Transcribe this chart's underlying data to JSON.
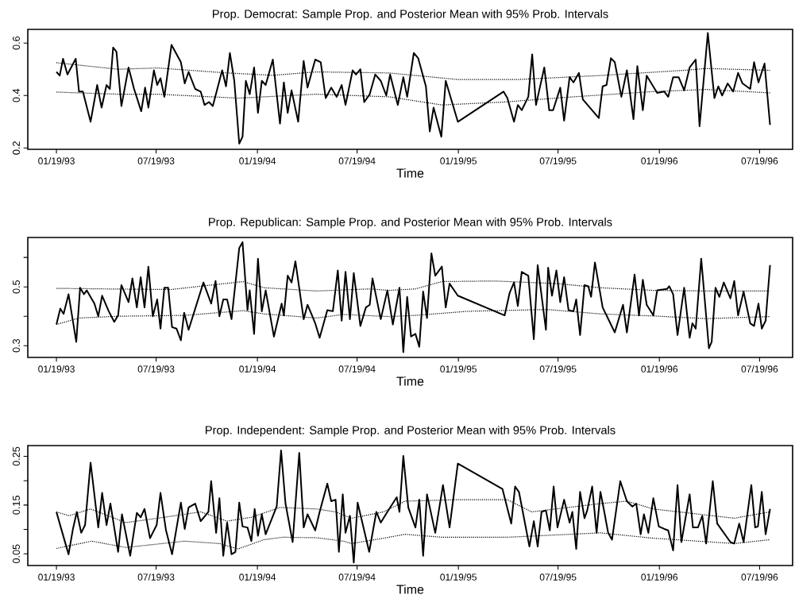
{
  "chart_data": [
    {
      "type": "line",
      "title": "Prop. Democrat: Sample Prop. and Posterior Mean with 95% Prob. Intervals",
      "xlabel": "Time",
      "grid": false,
      "line_style": "solid",
      "xlim": [
        "1992-11-28",
        "1996-09-17"
      ],
      "ylim": [
        0.195,
        0.652
      ],
      "xticks": [
        {
          "value": "1993-01-19",
          "label": "01/19/93"
        },
        {
          "value": "1993-07-19",
          "label": "07/19/93"
        },
        {
          "value": "1994-01-19",
          "label": "01/19/94"
        },
        {
          "value": "1994-07-19",
          "label": "07/19/94"
        },
        {
          "value": "1995-01-19",
          "label": "01/19/95"
        },
        {
          "value": "1995-07-19",
          "label": "07/19/95"
        },
        {
          "value": "1996-01-19",
          "label": "01/19/96"
        },
        {
          "value": "1996-07-19",
          "label": "07/19/96"
        }
      ],
      "yticks": [
        0.2,
        0.4,
        0.6
      ],
      "series": [
        {
          "color": "#000000",
          "x": [
            "1993-01-19",
            "1993-01-25",
            "1993-01-31",
            "1993-02-08",
            "1993-02-23",
            "1993-03-01",
            "1993-03-08",
            "1993-03-22",
            "1993-04-03",
            "1993-04-11",
            "1993-04-20",
            "1993-04-26",
            "1993-05-02",
            "1993-05-08",
            "1993-05-17",
            "1993-05-30",
            "1993-06-09",
            "1993-06-22",
            "1993-06-29",
            "1993-07-05",
            "1993-07-15",
            "1993-07-21",
            "1993-07-27",
            "1993-08-03",
            "1993-08-16",
            "1993-09-02",
            "1993-09-09",
            "1993-09-16",
            "1993-09-28",
            "1993-10-08",
            "1993-10-15",
            "1993-10-23",
            "1993-10-30",
            "1993-11-16",
            "1993-11-23",
            "1993-11-30",
            "1993-12-08",
            "1993-12-17",
            "1993-12-23",
            "1993-12-29",
            "1994-01-05",
            "1994-01-13",
            "1994-01-20",
            "1994-01-27",
            "1994-02-03",
            "1994-02-16",
            "1994-03-01",
            "1994-03-08",
            "1994-03-15",
            "1994-03-22",
            "1994-04-03",
            "1994-04-13",
            "1994-04-20",
            "1994-05-04",
            "1994-05-14",
            "1994-05-23",
            "1994-06-02",
            "1994-06-12",
            "1994-06-21",
            "1994-06-28",
            "1994-07-11",
            "1994-07-17",
            "1994-07-25",
            "1994-08-01",
            "1994-08-11",
            "1994-08-21",
            "1994-08-31",
            "1994-09-10",
            "1994-09-17",
            "1994-10-01",
            "1994-10-11",
            "1994-10-18",
            "1994-10-30",
            "1994-11-07",
            "1994-11-21",
            "1994-11-28",
            "1994-12-05",
            "1994-12-19",
            "1994-12-27",
            "1995-01-18",
            "1995-04-11",
            "1995-04-18",
            "1995-04-30",
            "1995-05-07",
            "1995-05-14",
            "1995-05-26",
            "1995-06-02",
            "1995-06-09",
            "1995-06-24",
            "1995-07-03",
            "1995-07-10",
            "1995-07-23",
            "1995-07-30",
            "1995-08-09",
            "1995-08-16",
            "1995-08-26",
            "1995-09-02",
            "1995-10-01",
            "1995-10-08",
            "1995-10-15",
            "1995-10-23",
            "1995-10-30",
            "1995-11-11",
            "1995-11-21",
            "1995-12-03",
            "1995-12-10",
            "1995-12-20",
            "1995-12-27",
            "1996-01-15",
            "1996-01-28",
            "1996-02-04",
            "1996-02-13",
            "1996-02-23",
            "1996-03-04",
            "1996-03-14",
            "1996-03-25",
            "1996-04-01",
            "1996-04-16",
            "1996-04-28",
            "1996-05-05",
            "1996-05-12",
            "1996-05-22",
            "1996-06-01",
            "1996-06-10",
            "1996-06-18",
            "1996-07-02",
            "1996-07-09",
            "1996-07-17",
            "1996-07-28",
            "1996-08-07"
          ],
          "values": [
            0.49,
            0.476,
            0.54,
            0.48,
            0.54,
            0.415,
            0.415,
            0.3,
            0.44,
            0.354,
            0.44,
            0.425,
            0.583,
            0.567,
            0.36,
            0.507,
            0.425,
            0.34,
            0.43,
            0.354,
            0.496,
            0.44,
            0.466,
            0.395,
            0.593,
            0.527,
            0.446,
            0.49,
            0.425,
            0.415,
            0.364,
            0.375,
            0.36,
            0.496,
            0.435,
            0.562,
            0.456,
            0.217,
            0.243,
            0.456,
            0.405,
            0.507,
            0.334,
            0.456,
            0.44,
            0.537,
            0.293,
            0.45,
            0.334,
            0.42,
            0.3,
            0.532,
            0.43,
            0.537,
            0.527,
            0.39,
            0.43,
            0.395,
            0.44,
            0.364,
            0.496,
            0.48,
            0.5,
            0.375,
            0.405,
            0.48,
            0.456,
            0.4,
            0.48,
            0.364,
            0.47,
            0.395,
            0.562,
            0.542,
            0.435,
            0.263,
            0.354,
            0.243,
            0.456,
            0.3,
            0.415,
            0.39,
            0.3,
            0.364,
            0.344,
            0.395,
            0.557,
            0.364,
            0.507,
            0.344,
            0.344,
            0.43,
            0.304,
            0.47,
            0.45,
            0.486,
            0.385,
            0.314,
            0.435,
            0.44,
            0.542,
            0.527,
            0.395,
            0.496,
            0.31,
            0.512,
            0.344,
            0.476,
            0.41,
            0.415,
            0.395,
            0.47,
            0.47,
            0.42,
            0.507,
            0.537,
            0.283,
            0.638,
            0.39,
            0.435,
            0.4,
            0.446,
            0.415,
            0.486,
            0.446,
            0.425,
            0.527,
            0.45,
            0.522,
            0.288
          ]
        },
        {
          "color": "#000000",
          "line_style": "dotted",
          "x": [
            "1993-01-19",
            "1993-05-11",
            "1993-07-22",
            "1993-11-25",
            "1994-02-16",
            "1994-05-06",
            "1994-09-15",
            "1995-01-18",
            "1995-05-07",
            "1995-10-01",
            "1996-03-04",
            "1996-04-13",
            "1996-08-07"
          ],
          "values": [
            0.525,
            0.5,
            0.505,
            0.486,
            0.477,
            0.49,
            0.486,
            0.461,
            0.461,
            0.476,
            0.496,
            0.503,
            0.496
          ]
        },
        {
          "color": "#000000",
          "line_style": "dotted",
          "x": [
            "1993-01-19",
            "1993-05-11",
            "1993-07-22",
            "1993-12-15",
            "1994-05-06",
            "1994-09-15",
            "1994-12-20",
            "1995-04-11",
            "1995-08-16",
            "1996-01-08",
            "1996-04-13",
            "1996-08-07"
          ],
          "values": [
            0.413,
            0.405,
            0.405,
            0.39,
            0.405,
            0.395,
            0.364,
            0.375,
            0.395,
            0.415,
            0.423,
            0.41
          ]
        }
      ]
    },
    {
      "type": "line",
      "title": "Prop. Republican: Sample Prop. and Posterior Mean with 95% Prob. Intervals",
      "xlabel": "Time",
      "grid": false,
      "line_style": "solid",
      "xlim": [
        "1992-11-28",
        "1996-09-17"
      ],
      "ylim": [
        0.26,
        0.668
      ],
      "xticks": [
        {
          "value": "1993-01-19",
          "label": "01/19/93"
        },
        {
          "value": "1993-07-19",
          "label": "07/19/93"
        },
        {
          "value": "1994-01-19",
          "label": "01/19/94"
        },
        {
          "value": "1994-07-19",
          "label": "07/19/94"
        },
        {
          "value": "1995-01-19",
          "label": "01/19/95"
        },
        {
          "value": "1995-07-19",
          "label": "07/19/95"
        },
        {
          "value": "1996-01-19",
          "label": "01/19/96"
        },
        {
          "value": "1996-07-19",
          "label": "07/19/96"
        }
      ],
      "yticks": [
        0.3,
        {
          "value": 0.4,
          "label": null
        },
        0.5,
        {
          "value": 0.6,
          "label": null
        }
      ],
      "series": [
        {
          "color": "#000000",
          "x": [
            "1993-01-19",
            "1993-01-26",
            "1993-02-01",
            "1993-02-10",
            "1993-02-24",
            "1993-03-03",
            "1993-03-10",
            "1993-03-15",
            "1993-03-29",
            "1993-04-05",
            "1993-04-12",
            "1993-04-24",
            "1993-05-04",
            "1993-05-11",
            "1993-05-17",
            "1993-05-30",
            "1993-06-06",
            "1993-06-14",
            "1993-06-21",
            "1993-06-28",
            "1993-07-05",
            "1993-07-13",
            "1993-07-21",
            "1993-07-27",
            "1993-08-03",
            "1993-08-10",
            "1993-08-17",
            "1993-08-25",
            "1993-09-02",
            "1993-09-08",
            "1993-09-16",
            "1993-10-13",
            "1993-10-27",
            "1993-11-04",
            "1993-11-11",
            "1993-11-18",
            "1993-11-25",
            "1993-12-03",
            "1993-12-17",
            "1993-12-23",
            "1994-01-01",
            "1994-01-05",
            "1994-01-13",
            "1994-01-20",
            "1994-01-27",
            "1994-02-03",
            "1994-02-18",
            "1994-03-04",
            "1994-03-08",
            "1994-03-15",
            "1994-03-22",
            "1994-03-29",
            "1994-04-13",
            "1994-04-20",
            "1994-04-27",
            "1994-05-04",
            "1994-05-12",
            "1994-05-26",
            "1994-06-05",
            "1994-06-14",
            "1994-06-21",
            "1994-06-28",
            "1994-07-06",
            "1994-07-13",
            "1994-07-25",
            "1994-08-04",
            "1994-08-11",
            "1994-08-16",
            "1994-08-31",
            "1994-09-12",
            "1994-09-22",
            "1994-10-04",
            "1994-10-11",
            "1994-10-18",
            "1994-10-25",
            "1994-11-02",
            "1994-11-09",
            "1994-11-16",
            "1994-11-23",
            "1994-12-01",
            "1994-12-08",
            "1994-12-20",
            "1994-12-27",
            "1995-01-03",
            "1995-01-18",
            "1995-04-13",
            "1995-04-22",
            "1995-04-30",
            "1995-05-07",
            "1995-05-14",
            "1995-05-26",
            "1995-06-05",
            "1995-06-12",
            "1995-06-27",
            "1995-07-01",
            "1995-07-08",
            "1995-07-16",
            "1995-07-23",
            "1995-07-30",
            "1995-08-07",
            "1995-08-16",
            "1995-08-21",
            "1995-08-28",
            "1995-09-05",
            "1995-09-12",
            "1995-09-17",
            "1995-09-24",
            "1995-10-08",
            "1995-10-30",
            "1995-11-14",
            "1995-11-21",
            "1995-12-05",
            "1995-12-13",
            "1995-12-20",
            "1995-12-27",
            "1996-01-08",
            "1996-01-15",
            "1996-02-02",
            "1996-02-06",
            "1996-02-13",
            "1996-02-21",
            "1996-03-04",
            "1996-03-14",
            "1996-03-19",
            "1996-03-25",
            "1996-04-04",
            "1996-04-18",
            "1996-04-23",
            "1996-04-30",
            "1996-05-07",
            "1996-05-15",
            "1996-05-27",
            "1996-06-03",
            "1996-06-10",
            "1996-06-20",
            "1996-07-02",
            "1996-07-09",
            "1996-07-17",
            "1996-07-23",
            "1996-07-30",
            "1996-08-07"
          ],
          "values": [
            0.372,
            0.426,
            0.408,
            0.475,
            0.313,
            0.497,
            0.475,
            0.488,
            0.443,
            0.4,
            0.47,
            0.417,
            0.381,
            0.403,
            0.506,
            0.448,
            0.529,
            0.43,
            0.533,
            0.43,
            0.569,
            0.4,
            0.457,
            0.358,
            0.497,
            0.497,
            0.363,
            0.358,
            0.318,
            0.412,
            0.354,
            0.515,
            0.443,
            0.52,
            0.4,
            0.457,
            0.457,
            0.39,
            0.632,
            0.652,
            0.421,
            0.488,
            0.34,
            0.596,
            0.417,
            0.488,
            0.331,
            0.443,
            0.403,
            0.538,
            0.515,
            0.587,
            0.39,
            0.439,
            0.408,
            0.376,
            0.327,
            0.421,
            0.417,
            0.556,
            0.385,
            0.551,
            0.39,
            0.547,
            0.367,
            0.43,
            0.439,
            0.529,
            0.39,
            0.488,
            0.372,
            0.497,
            0.278,
            0.466,
            0.331,
            0.34,
            0.296,
            0.484,
            0.394,
            0.614,
            0.538,
            0.569,
            0.43,
            0.511,
            0.47,
            0.403,
            0.479,
            0.515,
            0.435,
            0.551,
            0.538,
            0.322,
            0.574,
            0.354,
            0.565,
            0.47,
            0.556,
            0.448,
            0.533,
            0.421,
            0.417,
            0.457,
            0.336,
            0.506,
            0.502,
            0.466,
            0.583,
            0.43,
            0.345,
            0.439,
            0.345,
            0.542,
            0.403,
            0.524,
            0.439,
            0.403,
            0.488,
            0.493,
            0.502,
            0.475,
            0.336,
            0.497,
            0.327,
            0.376,
            0.358,
            0.596,
            0.291,
            0.313,
            0.497,
            0.466,
            0.515,
            0.461,
            0.52,
            0.403,
            0.484,
            0.376,
            0.367,
            0.443,
            0.358,
            0.385,
            0.574
          ]
        },
        {
          "color": "#000000",
          "line_style": "dotted",
          "x": [
            "1993-01-19",
            "1993-04-17",
            "1993-08-15",
            "1993-12-24",
            "1994-01-31",
            "1994-05-06",
            "1994-08-11",
            "1994-09-15",
            "1994-11-02",
            "1994-12-20",
            "1995-03-25",
            "1995-07-18",
            "1995-10-04",
            "1996-01-08",
            "1996-04-13",
            "1996-08-07"
          ],
          "values": [
            0.495,
            0.493,
            0.491,
            0.518,
            0.497,
            0.486,
            0.493,
            0.488,
            0.493,
            0.518,
            0.52,
            0.511,
            0.497,
            0.488,
            0.486,
            0.486
          ]
        },
        {
          "color": "#000000",
          "line_style": "dotted",
          "x": [
            "1993-01-19",
            "1993-03-01",
            "1993-05-11",
            "1993-09-09",
            "1993-12-24",
            "1994-01-31",
            "1994-05-06",
            "1994-06-24",
            "1994-09-15",
            "1994-11-02",
            "1995-02-06",
            "1995-06-29",
            "1995-10-04",
            "1996-01-08",
            "1996-04-13",
            "1996-08-07"
          ],
          "values": [
            0.372,
            0.394,
            0.4,
            0.403,
            0.419,
            0.408,
            0.394,
            0.406,
            0.399,
            0.403,
            0.417,
            0.423,
            0.408,
            0.401,
            0.392,
            0.399
          ]
        }
      ]
    },
    {
      "type": "line",
      "title": "Prop. Independent: Sample Prop. and Posterior Mean with 95% Prob. Intervals",
      "xlabel": "Time",
      "grid": false,
      "line_style": "solid",
      "xlim": [
        "1992-11-28",
        "1996-09-17"
      ],
      "ylim": [
        0.026,
        0.272
      ],
      "xticks": [
        {
          "value": "1993-01-19",
          "label": "01/19/93"
        },
        {
          "value": "1993-07-19",
          "label": "07/19/93"
        },
        {
          "value": "1994-01-19",
          "label": "01/19/94"
        },
        {
          "value": "1994-07-19",
          "label": "07/19/94"
        },
        {
          "value": "1995-01-19",
          "label": "01/19/95"
        },
        {
          "value": "1995-07-19",
          "label": "07/19/95"
        },
        {
          "value": "1996-01-19",
          "label": "01/19/96"
        },
        {
          "value": "1996-07-19",
          "label": "07/19/96"
        }
      ],
      "yticks": [
        0.05,
        {
          "value": 0.1,
          "label": null
        },
        0.15,
        {
          "value": 0.2,
          "label": null
        },
        0.25
      ],
      "series": [
        {
          "color": "#000000",
          "x": [
            "1993-01-19",
            "1993-01-27",
            "1993-02-10",
            "1993-02-18",
            "1993-02-25",
            "1993-03-05",
            "1993-03-12",
            "1993-03-22",
            "1993-04-05",
            "1993-04-12",
            "1993-04-20",
            "1993-04-27",
            "1993-05-11",
            "1993-05-18",
            "1993-06-02",
            "1993-06-14",
            "1993-06-21",
            "1993-06-28",
            "1993-07-08",
            "1993-07-20",
            "1993-07-27",
            "1993-08-06",
            "1993-08-17",
            "1993-09-02",
            "1993-09-09",
            "1993-09-16",
            "1993-09-28",
            "1993-10-08",
            "1993-10-22",
            "1993-10-27",
            "1993-11-05",
            "1993-11-11",
            "1993-11-18",
            "1993-11-25",
            "1993-12-03",
            "1993-12-10",
            "1993-12-17",
            "1993-12-23",
            "1994-01-01",
            "1994-01-08",
            "1994-01-14",
            "1994-01-20",
            "1994-01-27",
            "1994-02-03",
            "1994-02-23",
            "1994-03-03",
            "1994-03-11",
            "1994-03-24",
            "1994-04-05",
            "1994-04-13",
            "1994-04-20",
            "1994-05-04",
            "1994-05-12",
            "1994-05-26",
            "1994-06-02",
            "1994-06-10",
            "1994-06-16",
            "1994-06-23",
            "1994-06-28",
            "1994-07-06",
            "1994-07-13",
            "1994-07-20",
            "1994-08-10",
            "1994-08-23",
            "1994-08-31",
            "1994-09-12",
            "1994-09-29",
            "1994-10-04",
            "1994-10-11",
            "1994-10-20",
            "1994-11-02",
            "1994-11-09",
            "1994-11-16",
            "1994-11-23",
            "1994-12-08",
            "1994-12-22",
            "1995-01-03",
            "1995-01-18",
            "1995-04-09",
            "1995-04-25",
            "1995-05-02",
            "1995-05-09",
            "1995-05-28",
            "1995-06-05",
            "1995-06-12",
            "1995-06-19",
            "1995-06-27",
            "1995-07-04",
            "1995-07-11",
            "1995-07-18",
            "1995-07-30",
            "1995-08-09",
            "1995-08-14",
            "1995-08-21",
            "1995-08-28",
            "1995-09-05",
            "1995-09-10",
            "1995-09-19",
            "1995-09-27",
            "1995-10-04",
            "1995-10-11",
            "1995-10-18",
            "1995-10-25",
            "1995-11-09",
            "1995-11-21",
            "1995-12-01",
            "1995-12-08",
            "1995-12-16",
            "1995-12-22",
            "1995-12-30",
            "1996-01-08",
            "1996-01-18",
            "1996-01-28",
            "1996-02-04",
            "1996-02-13",
            "1996-02-21",
            "1996-02-28",
            "1996-03-14",
            "1996-03-20",
            "1996-03-29",
            "1996-04-06",
            "1996-04-13",
            "1996-04-25",
            "1996-05-03",
            "1996-05-27",
            "1996-06-03",
            "1996-06-12",
            "1996-06-20",
            "1996-07-04",
            "1996-07-11",
            "1996-07-16",
            "1996-07-23",
            "1996-07-30",
            "1996-08-07"
          ],
          "values": [
            0.136,
            0.104,
            0.049,
            0.101,
            0.136,
            0.093,
            0.109,
            0.237,
            0.104,
            0.175,
            0.109,
            0.153,
            0.054,
            0.131,
            0.046,
            0.134,
            0.125,
            0.142,
            0.082,
            0.109,
            0.175,
            0.098,
            0.049,
            0.155,
            0.101,
            0.145,
            0.153,
            0.117,
            0.136,
            0.199,
            0.093,
            0.164,
            0.046,
            0.114,
            0.049,
            0.054,
            0.155,
            0.106,
            0.104,
            0.076,
            0.142,
            0.087,
            0.131,
            0.09,
            0.147,
            0.262,
            0.153,
            0.074,
            0.257,
            0.104,
            0.131,
            0.098,
            0.136,
            0.194,
            0.158,
            0.161,
            0.054,
            0.172,
            0.093,
            0.128,
            0.032,
            0.155,
            0.054,
            0.136,
            0.114,
            0.136,
            0.166,
            0.136,
            0.251,
            0.145,
            0.104,
            0.161,
            0.046,
            0.172,
            0.093,
            0.191,
            0.104,
            0.235,
            0.183,
            0.112,
            0.188,
            0.177,
            0.065,
            0.117,
            0.065,
            0.136,
            0.139,
            0.098,
            0.188,
            0.104,
            0.161,
            0.114,
            0.136,
            0.06,
            0.177,
            0.123,
            0.139,
            0.188,
            0.093,
            0.177,
            0.136,
            0.093,
            0.079,
            0.199,
            0.158,
            0.147,
            0.153,
            0.09,
            0.131,
            0.093,
            0.164,
            0.106,
            0.101,
            0.098,
            0.057,
            0.191,
            0.074,
            0.172,
            0.104,
            0.104,
            0.128,
            0.071,
            0.199,
            0.112,
            0.074,
            0.071,
            0.112,
            0.074,
            0.191,
            0.104,
            0.106,
            0.177,
            0.09,
            0.142
          ]
        },
        {
          "color": "#000000",
          "line_style": "dotted",
          "x": [
            "1993-01-19",
            "1993-02-11",
            "1993-03-22",
            "1993-05-25",
            "1993-07-22",
            "1993-10-08",
            "1993-11-25",
            "1994-01-08",
            "1994-03-01",
            "1994-05-06",
            "1994-06-10",
            "1994-07-09",
            "1994-09-05",
            "1994-10-14",
            "1995-01-18",
            "1995-04-18",
            "1995-06-01",
            "1995-10-04",
            "1995-11-21",
            "1996-01-08",
            "1996-06-03",
            "1996-08-07"
          ],
          "values": [
            0.136,
            0.128,
            0.142,
            0.114,
            0.123,
            0.136,
            0.117,
            0.125,
            0.145,
            0.142,
            0.136,
            0.123,
            0.136,
            0.158,
            0.161,
            0.161,
            0.136,
            0.153,
            0.158,
            0.142,
            0.123,
            0.136
          ]
        },
        {
          "color": "#000000",
          "line_style": "dotted",
          "x": [
            "1993-01-19",
            "1993-03-24",
            "1993-05-25",
            "1993-09-09",
            "1993-11-11",
            "1993-12-15",
            "1994-01-31",
            "1994-03-06",
            "1994-05-06",
            "1994-06-24",
            "1994-07-09",
            "1994-09-05",
            "1994-10-14",
            "1994-12-20",
            "1995-04-18",
            "1995-10-04",
            "1996-01-08",
            "1996-06-03",
            "1996-08-07"
          ],
          "values": [
            0.061,
            0.076,
            0.063,
            0.076,
            0.071,
            0.06,
            0.079,
            0.084,
            0.083,
            0.076,
            0.071,
            0.082,
            0.09,
            0.084,
            0.084,
            0.093,
            0.082,
            0.071,
            0.079
          ]
        }
      ]
    }
  ]
}
